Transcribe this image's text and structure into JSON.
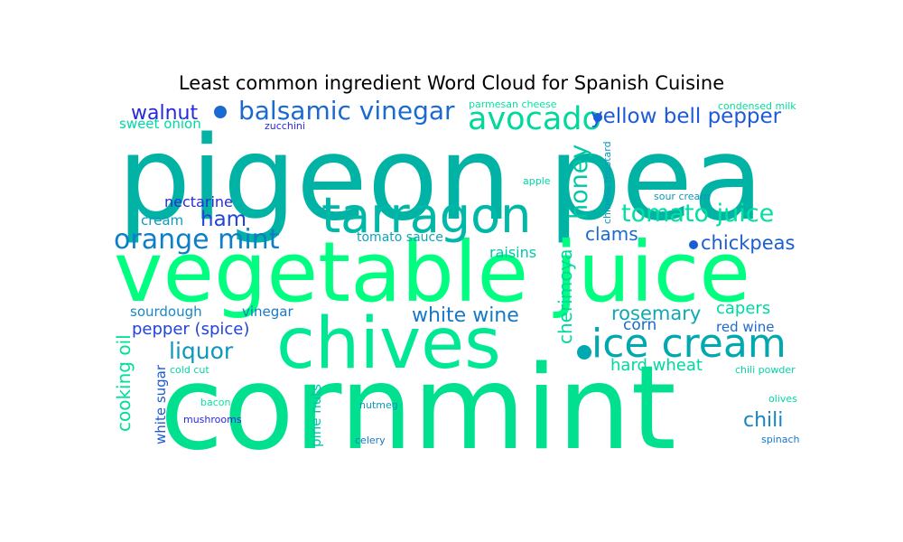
{
  "chart_data": {
    "type": "wordcloud",
    "title": "Least common ingredient Word Cloud for Spanish Cuisine",
    "words": [
      {
        "text": "pigeon pea",
        "weight": 100,
        "color": "#00b3a4"
      },
      {
        "text": "cornmint",
        "weight": 100,
        "color": "#00e08e"
      },
      {
        "text": "vegetable juice",
        "weight": 80,
        "color": "#00ff80"
      },
      {
        "text": "chives",
        "weight": 70,
        "color": "#00e894"
      },
      {
        "text": "tarragon",
        "weight": 55,
        "color": "#00b8a8"
      },
      {
        "text": "ice cream",
        "weight": 45,
        "color": "#00a8b0"
      },
      {
        "text": "avocado",
        "weight": 38,
        "color": "#00d89c"
      },
      {
        "text": "balsamic vinegar",
        "weight": 32,
        "color": "#1a6ad0"
      },
      {
        "text": "orange mint",
        "weight": 32,
        "color": "#0c7fc8"
      },
      {
        "text": "tomato juice",
        "weight": 30,
        "color": "#00e0a0"
      },
      {
        "text": "honey",
        "weight": 28,
        "color": "#00c8a4"
      },
      {
        "text": "yellow bell pepper",
        "weight": 26,
        "color": "#1c5ad8"
      },
      {
        "text": "ham",
        "weight": 26,
        "color": "#2244d8"
      },
      {
        "text": "liquor",
        "weight": 26,
        "color": "#0e98bc"
      },
      {
        "text": "walnut",
        "weight": 24,
        "color": "#2828e0"
      },
      {
        "text": "white wine",
        "weight": 24,
        "color": "#1878c8"
      },
      {
        "text": "chili",
        "weight": 24,
        "color": "#1684c4"
      },
      {
        "text": "chickpeas",
        "weight": 22,
        "color": "#1a5ed0"
      },
      {
        "text": "clams",
        "weight": 22,
        "color": "#1a6ad0"
      },
      {
        "text": "rosemary",
        "weight": 22,
        "color": "#10a8b0"
      },
      {
        "text": "cherimoya",
        "weight": 20,
        "color": "#00d8a0"
      },
      {
        "text": "cooking oil",
        "weight": 20,
        "color": "#00e098"
      },
      {
        "text": "hard wheat",
        "weight": 20,
        "color": "#00d8a0"
      },
      {
        "text": "pepper (spice)",
        "weight": 18,
        "color": "#2244d8"
      },
      {
        "text": "capers",
        "weight": 18,
        "color": "#00d8a4"
      },
      {
        "text": "raisins",
        "weight": 18,
        "color": "#00c8a8"
      },
      {
        "text": "corn",
        "weight": 18,
        "color": "#1a6ad0"
      },
      {
        "text": "nectarine",
        "weight": 16,
        "color": "#2828e0"
      },
      {
        "text": "cream",
        "weight": 16,
        "color": "#0c9ac0"
      },
      {
        "text": "sourdough",
        "weight": 16,
        "color": "#1888c4"
      },
      {
        "text": "vinegar",
        "weight": 16,
        "color": "#1878c8"
      },
      {
        "text": "red wine",
        "weight": 16,
        "color": "#1e6ad0"
      },
      {
        "text": "sweet onion",
        "weight": 16,
        "color": "#00d8a4"
      },
      {
        "text": "tomato sauce",
        "weight": 15,
        "color": "#10a4b4"
      },
      {
        "text": "white sugar",
        "weight": 15,
        "color": "#1c5ad8"
      },
      {
        "text": "pine nuts",
        "weight": 15,
        "color": "#00c8a8"
      },
      {
        "text": "honey dot",
        "weight": 0,
        "color": "#00a8b0"
      },
      {
        "text": "parmesan cheese",
        "weight": 12,
        "color": "#00e8a0"
      },
      {
        "text": "condensed milk",
        "weight": 12,
        "color": "#00e09c"
      },
      {
        "text": "zucchini",
        "weight": 12,
        "color": "#2828e0"
      },
      {
        "text": "chinese mustard",
        "weight": 12,
        "color": "#0c98bc"
      },
      {
        "text": "apple",
        "weight": 12,
        "color": "#00d8a4"
      },
      {
        "text": "sour cream",
        "weight": 12,
        "color": "#0c98bc"
      },
      {
        "text": "cold cut",
        "weight": 12,
        "color": "#00d8a4"
      },
      {
        "text": "chili powder",
        "weight": 12,
        "color": "#00d8a4"
      },
      {
        "text": "bacon",
        "weight": 12,
        "color": "#00e8a0"
      },
      {
        "text": "mushrooms",
        "weight": 12,
        "color": "#2828e0"
      },
      {
        "text": "nutmeg",
        "weight": 12,
        "color": "#0c98bc"
      },
      {
        "text": "olives",
        "weight": 12,
        "color": "#00d8a4"
      },
      {
        "text": "celery",
        "weight": 12,
        "color": "#1878c8"
      },
      {
        "text": "spinach",
        "weight": 12,
        "color": "#1878c8"
      }
    ]
  }
}
